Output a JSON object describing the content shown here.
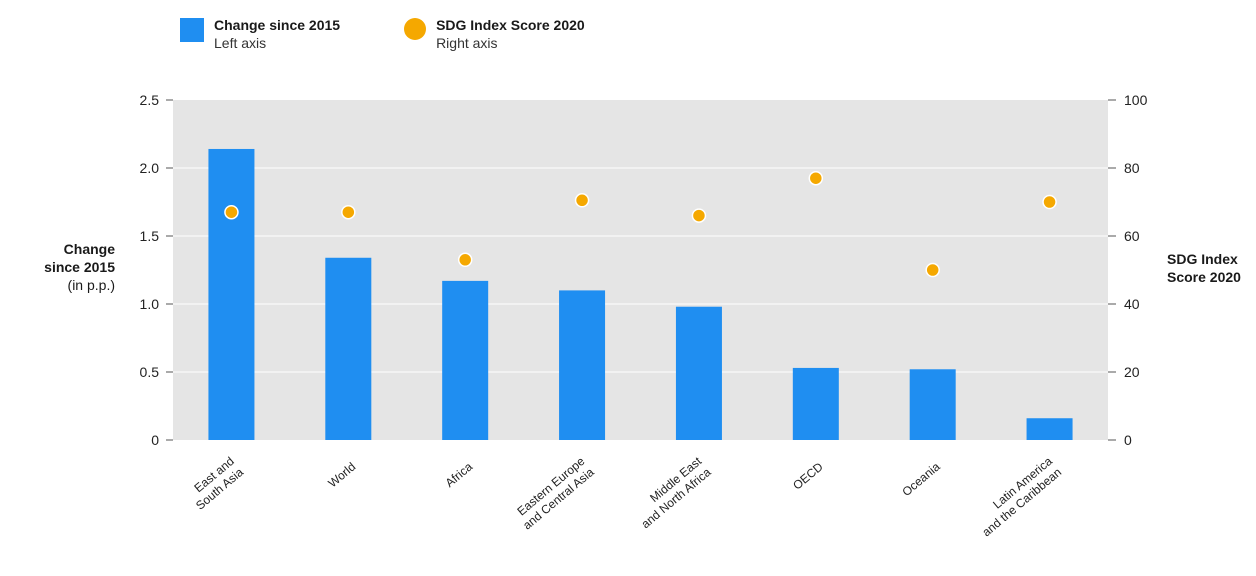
{
  "legend": {
    "bar": {
      "name": "Change since 2015",
      "note": "Left axis"
    },
    "dot": {
      "name": "SDG Index Score 2020",
      "note": "Right axis"
    }
  },
  "axes": {
    "left_title": {
      "line1": "Change",
      "line2": "since 2015",
      "line3": "(in p.p.)"
    },
    "right_title": {
      "line1": "SDG Index",
      "line2": "Score 2020"
    }
  },
  "colors": {
    "bar": "#1f8ef1",
    "dot": "#f5a800",
    "plot_bg": "#e5e5e5",
    "grid": "#ffffff"
  },
  "chart_data": {
    "type": "bar",
    "categories": [
      [
        "East and",
        "South Asia"
      ],
      [
        "World"
      ],
      [
        "Africa"
      ],
      [
        "Eastern Europe",
        "and Central Asia"
      ],
      [
        "Middle East",
        "and North Africa"
      ],
      [
        "OECD"
      ],
      [
        "Oceania"
      ],
      [
        "Latin America",
        "and the Caribbean"
      ]
    ],
    "series": [
      {
        "name": "Change since 2015",
        "axis": "left",
        "type": "bar",
        "values": [
          2.14,
          1.34,
          1.17,
          1.1,
          0.98,
          0.53,
          0.52,
          0.16
        ]
      },
      {
        "name": "SDG Index Score 2020",
        "axis": "right",
        "type": "scatter",
        "values": [
          67,
          67,
          53,
          70.5,
          66,
          77,
          50,
          70
        ]
      }
    ],
    "y_left": {
      "min": 0,
      "max": 2.5,
      "ticks": [
        "0",
        "0.5",
        "1.0",
        "1.5",
        "2.0",
        "2.5"
      ]
    },
    "y_right": {
      "min": 0,
      "max": 100,
      "ticks": [
        "0",
        "20",
        "40",
        "60",
        "80",
        "100"
      ]
    },
    "grid": true,
    "legend_position": "top-left"
  }
}
